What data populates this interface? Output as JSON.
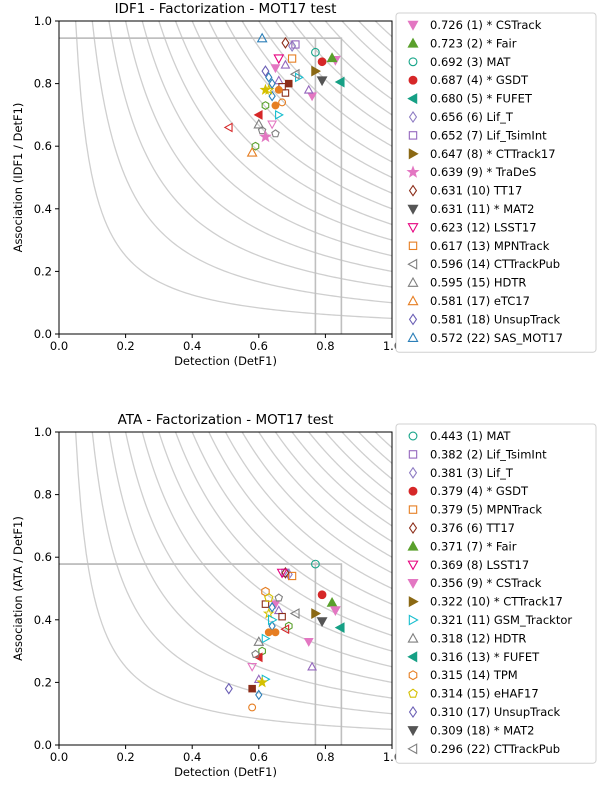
{
  "chart_data": [
    {
      "type": "scatter",
      "title": "IDF1 - Factorization - MOT17 test",
      "xlabel": "Detection (DetF1)",
      "ylabel": "Association (IDF1 / DetF1)",
      "xlim": [
        0.0,
        1.0
      ],
      "ylim": [
        0.0,
        1.0
      ],
      "xticks": [
        "0.0",
        "0.2",
        "0.4",
        "0.6",
        "0.8",
        "1.0"
      ],
      "yticks": [
        "0.0",
        "0.2",
        "0.4",
        "0.6",
        "0.8",
        "1.0"
      ],
      "iso_contours": [
        0.05,
        0.1,
        0.15,
        0.2,
        0.25,
        0.3,
        0.35,
        0.4,
        0.45,
        0.5,
        0.55,
        0.6,
        0.65,
        0.7,
        0.75,
        0.8,
        0.85,
        0.9,
        0.95
      ],
      "highlight_guides": [
        {
          "x": 0.77,
          "y": 0.945
        },
        {
          "x": 0.848,
          "y": 0.945
        }
      ],
      "grid": false,
      "legend_position": "outside-right",
      "series": [
        {
          "name": "0.726 (1) * CSTrack",
          "marker": "tri-down",
          "filled": true,
          "color": "#e377c2",
          "points": [
            [
              0.83,
              0.875
            ]
          ]
        },
        {
          "name": "0.723 (2) * Fair",
          "marker": "tri-up",
          "filled": true,
          "color": "#5aa02c",
          "points": [
            [
              0.82,
              0.882
            ]
          ]
        },
        {
          "name": "0.692 (3)  MAT",
          "marker": "circle",
          "filled": false,
          "color": "#17a589",
          "points": [
            [
              0.77,
              0.9
            ]
          ]
        },
        {
          "name": "0.687 (4) * GSDT",
          "marker": "circle",
          "filled": true,
          "color": "#d62728",
          "points": [
            [
              0.79,
              0.87
            ]
          ]
        },
        {
          "name": "0.680 (5) * FUFET",
          "marker": "tri-left",
          "filled": true,
          "color": "#16a085",
          "points": [
            [
              0.845,
              0.805
            ]
          ]
        },
        {
          "name": "0.656 (6)  Lif_T",
          "marker": "diamond",
          "filled": false,
          "color": "#8e7cc3",
          "points": [
            [
              0.7,
              0.92
            ]
          ]
        },
        {
          "name": "0.652 (7)  Lif_TsimInt",
          "marker": "square",
          "filled": false,
          "color": "#9467bd",
          "points": [
            [
              0.71,
              0.925
            ]
          ]
        },
        {
          "name": "0.647 (8) * CTTrack17",
          "marker": "tri-right",
          "filled": true,
          "color": "#8b6914",
          "points": [
            [
              0.77,
              0.84
            ]
          ]
        },
        {
          "name": "0.639 (9) * TraDeS",
          "marker": "star",
          "filled": true,
          "color": "#e377c2",
          "points": [
            [
              0.62,
              0.63
            ]
          ]
        },
        {
          "name": "0.631 (10)  TT17",
          "marker": "diamond",
          "filled": false,
          "color": "#8c2d19",
          "points": [
            [
              0.68,
              0.93
            ]
          ]
        },
        {
          "name": "0.631 (11) * MAT2",
          "marker": "tri-down",
          "filled": true,
          "color": "#555555",
          "points": [
            [
              0.79,
              0.81
            ]
          ]
        },
        {
          "name": "0.623 (12)  LSST17",
          "marker": "tri-down",
          "filled": false,
          "color": "#e6007e",
          "points": [
            [
              0.66,
              0.88
            ]
          ]
        },
        {
          "name": "0.617 (13)  MPNTrack",
          "marker": "square",
          "filled": false,
          "color": "#e67e22",
          "points": [
            [
              0.7,
              0.88
            ]
          ]
        },
        {
          "name": "0.596 (14)  CTTrackPub",
          "marker": "tri-left",
          "filled": false,
          "color": "#7f7f7f",
          "points": [
            [
              0.71,
              0.83
            ]
          ]
        },
        {
          "name": "0.595 (15)  HDTR",
          "marker": "tri-up",
          "filled": false,
          "color": "#7f7f7f",
          "points": [
            [
              0.6,
              0.67
            ]
          ]
        },
        {
          "name": "0.581 (17)  eTC17",
          "marker": "tri-up",
          "filled": false,
          "color": "#e67e22",
          "points": [
            [
              0.58,
              0.58
            ]
          ]
        },
        {
          "name": "0.581 (18)  UnsupTrack",
          "marker": "diamond",
          "filled": false,
          "color": "#6b5fb5",
          "points": [
            [
              0.62,
              0.84
            ]
          ]
        },
        {
          "name": "0.572 (22)  SAS_MOT17",
          "marker": "tri-up",
          "filled": false,
          "color": "#2c7fb8",
          "points": [
            [
              0.61,
              0.945
            ]
          ]
        }
      ],
      "unlabeled_points": [
        [
          0.65,
          0.85
        ],
        [
          0.66,
          0.81
        ],
        [
          0.67,
          0.79
        ],
        [
          0.64,
          0.76
        ],
        [
          0.65,
          0.73
        ],
        [
          0.66,
          0.7
        ],
        [
          0.63,
          0.78
        ],
        [
          0.62,
          0.73
        ],
        [
          0.6,
          0.7
        ],
        [
          0.61,
          0.65
        ],
        [
          0.64,
          0.67
        ],
        [
          0.68,
          0.86
        ],
        [
          0.69,
          0.8
        ],
        [
          0.63,
          0.82
        ],
        [
          0.67,
          0.74
        ],
        [
          0.72,
          0.82
        ],
        [
          0.62,
          0.78
        ],
        [
          0.59,
          0.6
        ],
        [
          0.51,
          0.66
        ],
        [
          0.65,
          0.64
        ],
        [
          0.76,
          0.76
        ],
        [
          0.75,
          0.78
        ],
        [
          0.68,
          0.77
        ],
        [
          0.64,
          0.8
        ],
        [
          0.66,
          0.78
        ]
      ]
    },
    {
      "type": "scatter",
      "title": "ATA - Factorization - MOT17 test",
      "xlabel": "Detection (DetF1)",
      "ylabel": "Association (ATA / DetF1)",
      "xlim": [
        0.0,
        1.0
      ],
      "ylim": [
        0.0,
        1.0
      ],
      "xticks": [
        "0.0",
        "0.2",
        "0.4",
        "0.6",
        "0.8",
        "1.0"
      ],
      "yticks": [
        "0.0",
        "0.2",
        "0.4",
        "0.6",
        "0.8",
        "1.0"
      ],
      "iso_contours": [
        0.05,
        0.1,
        0.15,
        0.2,
        0.25,
        0.3,
        0.35,
        0.4,
        0.45,
        0.5,
        0.55,
        0.6,
        0.65,
        0.7,
        0.75,
        0.8,
        0.85,
        0.9,
        0.95
      ],
      "highlight_guides": [
        {
          "x": 0.77,
          "y": 0.578
        },
        {
          "x": 0.848,
          "y": 0.578
        }
      ],
      "grid": false,
      "legend_position": "outside-right",
      "series": [
        {
          "name": "0.443 (1)  MAT",
          "marker": "circle",
          "filled": false,
          "color": "#17a589",
          "points": [
            [
              0.77,
              0.578
            ]
          ]
        },
        {
          "name": "0.382 (2)  Lif_TsimInt",
          "marker": "square",
          "filled": false,
          "color": "#9467bd",
          "points": [
            [
              0.68,
              0.55
            ]
          ]
        },
        {
          "name": "0.381 (3)  Lif_T",
          "marker": "diamond",
          "filled": false,
          "color": "#8e7cc3",
          "points": [
            [
              0.69,
              0.545
            ]
          ]
        },
        {
          "name": "0.379 (4) * GSDT",
          "marker": "circle",
          "filled": true,
          "color": "#d62728",
          "points": [
            [
              0.79,
              0.48
            ]
          ]
        },
        {
          "name": "0.379 (5)  MPNTrack",
          "marker": "square",
          "filled": false,
          "color": "#e67e22",
          "points": [
            [
              0.7,
              0.54
            ]
          ]
        },
        {
          "name": "0.376 (6)  TT17",
          "marker": "diamond",
          "filled": false,
          "color": "#8c2d19",
          "points": [
            [
              0.68,
              0.55
            ]
          ]
        },
        {
          "name": "0.371 (7) * Fair",
          "marker": "tri-up",
          "filled": true,
          "color": "#5aa02c",
          "points": [
            [
              0.82,
              0.455
            ]
          ]
        },
        {
          "name": "0.369 (8)  LSST17",
          "marker": "tri-down",
          "filled": false,
          "color": "#e6007e",
          "points": [
            [
              0.67,
              0.55
            ]
          ]
        },
        {
          "name": "0.356 (9) * CSTrack",
          "marker": "tri-down",
          "filled": true,
          "color": "#e377c2",
          "points": [
            [
              0.83,
              0.43
            ]
          ]
        },
        {
          "name": "0.322 (10) * CTTrack17",
          "marker": "tri-right",
          "filled": true,
          "color": "#8b6914",
          "points": [
            [
              0.77,
              0.42
            ]
          ]
        },
        {
          "name": "0.321 (11)  GSM_Tracktor",
          "marker": "tri-right",
          "filled": false,
          "color": "#17becf",
          "points": [
            [
              0.64,
              0.4
            ]
          ]
        },
        {
          "name": "0.318 (12)  HDTR",
          "marker": "tri-up",
          "filled": false,
          "color": "#7f7f7f",
          "points": [
            [
              0.6,
              0.33
            ]
          ]
        },
        {
          "name": "0.316 (13) * FUFET",
          "marker": "tri-left",
          "filled": true,
          "color": "#16a085",
          "points": [
            [
              0.845,
              0.375
            ]
          ]
        },
        {
          "name": "0.315 (14)  TPM",
          "marker": "hexagon",
          "filled": false,
          "color": "#e67e22",
          "points": [
            [
              0.62,
              0.49
            ]
          ]
        },
        {
          "name": "0.314 (15)  eHAF17",
          "marker": "pentagon",
          "filled": false,
          "color": "#d4c000",
          "points": [
            [
              0.63,
              0.47
            ]
          ]
        },
        {
          "name": "0.310 (17)  UnsupTrack",
          "marker": "diamond",
          "filled": false,
          "color": "#6b5fb5",
          "points": [
            [
              0.51,
              0.18
            ]
          ]
        },
        {
          "name": "0.309 (18) * MAT2",
          "marker": "tri-down",
          "filled": true,
          "color": "#555555",
          "points": [
            [
              0.79,
              0.395
            ]
          ]
        },
        {
          "name": "0.296 (22)  CTTrackPub",
          "marker": "tri-left",
          "filled": false,
          "color": "#7f7f7f",
          "points": [
            [
              0.71,
              0.42
            ]
          ]
        }
      ],
      "unlabeled_points": [
        [
          0.65,
          0.45
        ],
        [
          0.66,
          0.43
        ],
        [
          0.67,
          0.41
        ],
        [
          0.64,
          0.38
        ],
        [
          0.65,
          0.36
        ],
        [
          0.62,
          0.34
        ],
        [
          0.63,
          0.42
        ],
        [
          0.61,
          0.3
        ],
        [
          0.6,
          0.28
        ],
        [
          0.59,
          0.29
        ],
        [
          0.58,
          0.25
        ],
        [
          0.6,
          0.21
        ],
        [
          0.58,
          0.18
        ],
        [
          0.6,
          0.16
        ],
        [
          0.58,
          0.12
        ],
        [
          0.62,
          0.21
        ],
        [
          0.61,
          0.2
        ],
        [
          0.69,
          0.38
        ],
        [
          0.68,
          0.37
        ],
        [
          0.66,
          0.47
        ],
        [
          0.75,
          0.33
        ],
        [
          0.76,
          0.25
        ],
        [
          0.62,
          0.45
        ],
        [
          0.64,
          0.44
        ],
        [
          0.63,
          0.36
        ]
      ]
    }
  ]
}
